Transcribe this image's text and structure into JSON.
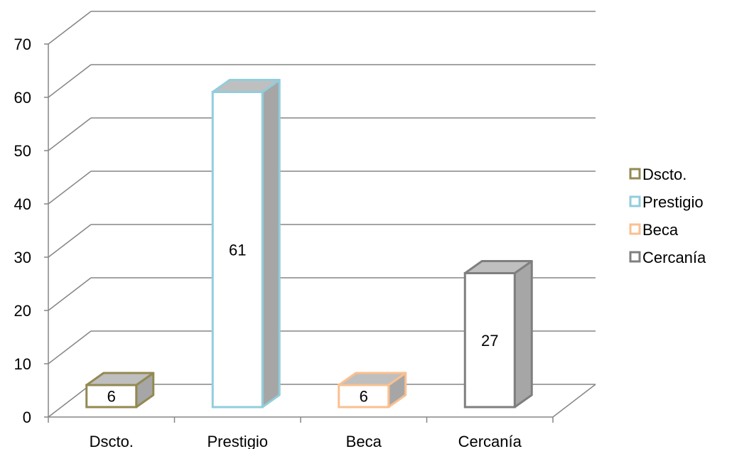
{
  "chart_data": {
    "type": "bar",
    "title": "",
    "xlabel": "",
    "ylabel": "",
    "categories": [
      "Dscto.",
      "Prestigio",
      "Beca",
      "Cercanía"
    ],
    "values": [
      6,
      61,
      6,
      27
    ],
    "ylim": [
      0,
      70
    ],
    "yticks": [
      0,
      10,
      20,
      30,
      40,
      50,
      60,
      70
    ],
    "grid": true,
    "three_d": true,
    "legend_position": "right",
    "series": [
      {
        "name": "Dscto.",
        "value": 6,
        "color": "#938953"
      },
      {
        "name": "Prestigio",
        "value": 61,
        "color": "#92cddc"
      },
      {
        "name": "Beca",
        "value": 6,
        "color": "#fac090"
      },
      {
        "name": "Cercanía",
        "value": 27,
        "color": "#7f7f7f"
      }
    ],
    "data_labels": [
      "6",
      "61",
      "6",
      "27"
    ]
  }
}
